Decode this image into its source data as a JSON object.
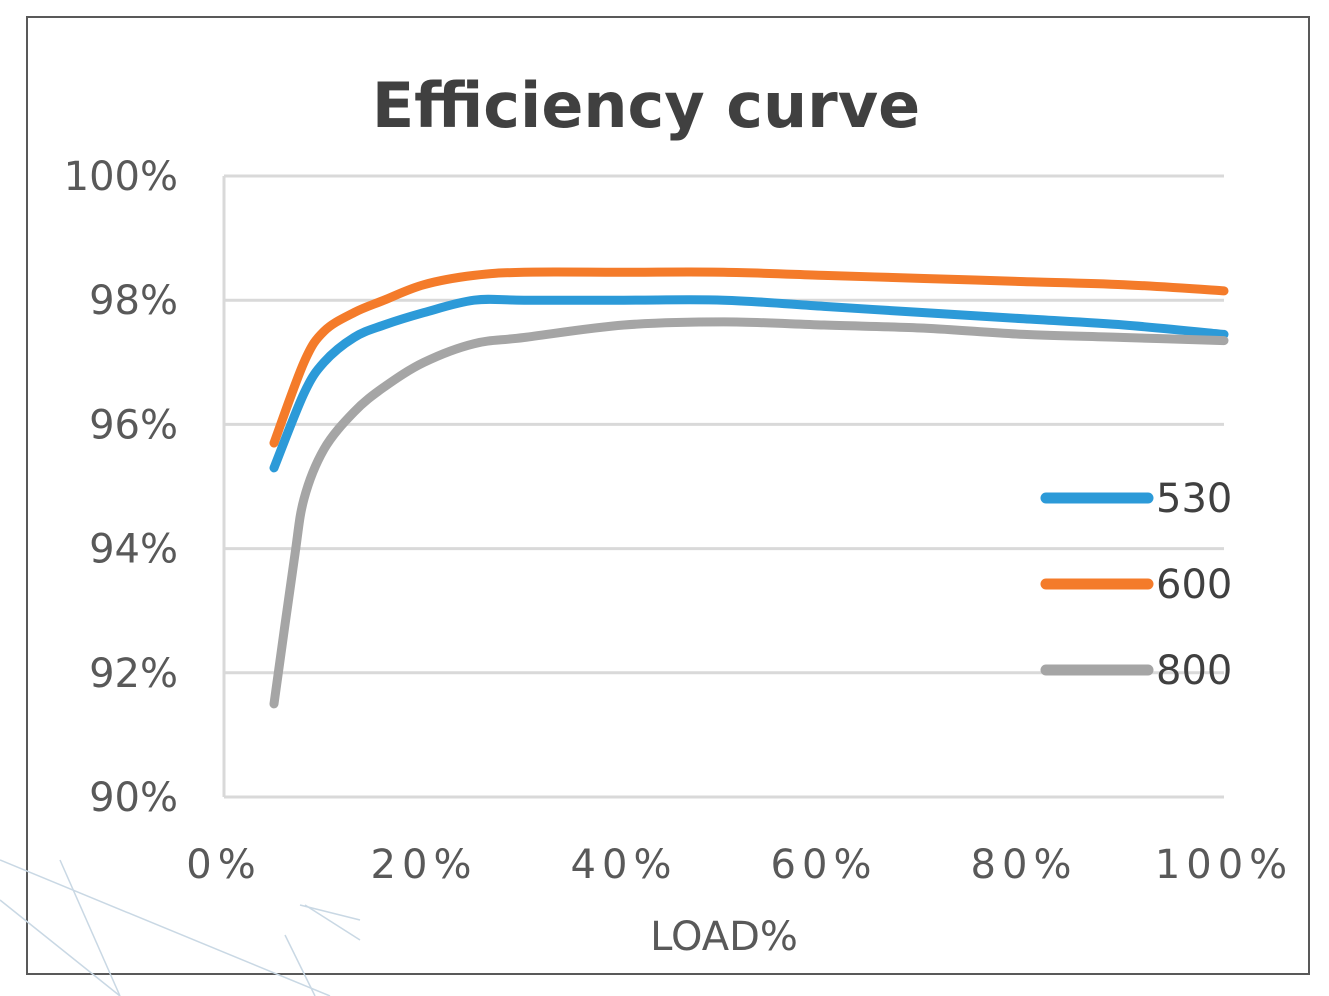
{
  "chart_data": {
    "type": "line",
    "title": "Efficiency curve",
    "xlabel": "LOAD%",
    "ylabel": "",
    "xlim": [
      0,
      100
    ],
    "ylim": [
      90,
      100
    ],
    "x_ticks": [
      "0%",
      "20%",
      "40%",
      "60%",
      "80%",
      "100%"
    ],
    "y_ticks": [
      "90%",
      "92%",
      "94%",
      "96%",
      "98%",
      "100%"
    ],
    "grid": "horizontal",
    "legend_position": "right",
    "series": [
      {
        "name": "530",
        "color": "#2c9ad8",
        "x": [
          5,
          8,
          10,
          13,
          16,
          20,
          25,
          30,
          40,
          50,
          60,
          70,
          80,
          90,
          100
        ],
        "values": [
          95.3,
          96.5,
          97.0,
          97.4,
          97.6,
          97.8,
          98.0,
          98.0,
          98.0,
          98.0,
          97.9,
          97.8,
          97.7,
          97.6,
          97.45
        ]
      },
      {
        "name": "600",
        "color": "#f47b2a",
        "x": [
          5,
          8,
          10,
          13,
          16,
          20,
          25,
          30,
          40,
          50,
          60,
          70,
          80,
          90,
          100
        ],
        "values": [
          95.7,
          97.0,
          97.5,
          97.8,
          98.0,
          98.25,
          98.4,
          98.45,
          98.45,
          98.45,
          98.4,
          98.35,
          98.3,
          98.25,
          98.15
        ]
      },
      {
        "name": "800",
        "color": "#a5a5a5",
        "x": [
          5,
          7,
          8,
          10,
          13,
          16,
          20,
          25,
          30,
          40,
          50,
          60,
          70,
          80,
          90,
          100
        ],
        "values": [
          91.5,
          93.8,
          94.8,
          95.6,
          96.2,
          96.6,
          97.0,
          97.3,
          97.4,
          97.6,
          97.65,
          97.6,
          97.55,
          97.45,
          97.4,
          97.35
        ]
      }
    ]
  }
}
